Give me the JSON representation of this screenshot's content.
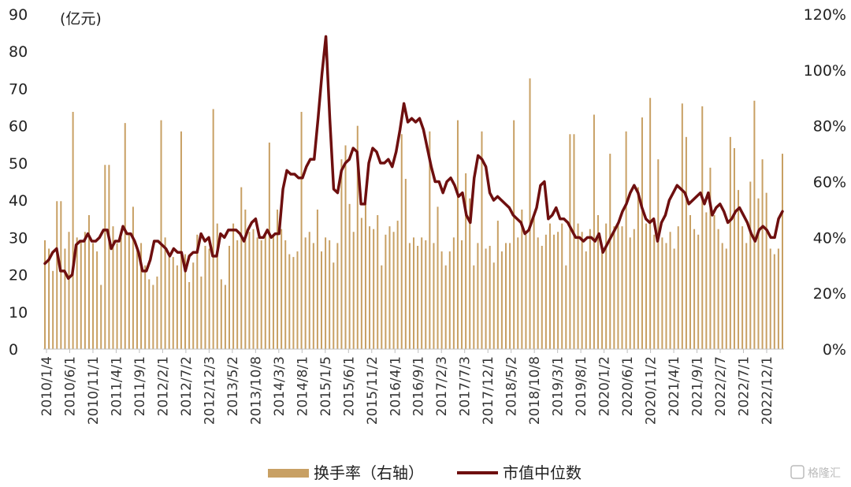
{
  "chart_data": {
    "type": "bar",
    "unit_left": "(亿元)",
    "left_axis": {
      "ylim": [
        0,
        90
      ],
      "ticks": [
        "0",
        "10",
        "20",
        "30",
        "40",
        "50",
        "60",
        "70",
        "80",
        "90"
      ]
    },
    "right_axis": {
      "ylim": [
        0,
        1.2
      ],
      "ticks": [
        "0%",
        "20%",
        "40%",
        "60%",
        "80%",
        "100%",
        "120%"
      ]
    },
    "x_tick_labels": [
      "2010/1/4",
      "2010/6/1",
      "2010/11/1",
      "2011/4/1",
      "2011/9/1",
      "2012/2/1",
      "2012/7/2",
      "2012/12/3",
      "2013/5/2",
      "2013/10/8",
      "2014/3/3",
      "2014/8/1",
      "2015/1/5",
      "2015/6/1",
      "2015/11/2",
      "2016/4/1",
      "2016/9/1",
      "2017/2/3",
      "2017/7/3",
      "2017/12/1",
      "2018/5/2",
      "2018/10/8",
      "2019/3/1",
      "2019/8/1",
      "2020/1/2",
      "2020/6/1",
      "2020/11/2",
      "2021/4/1",
      "2021/9/1",
      "2022/2/7",
      "2022/7/1",
      "2022/12/1"
    ],
    "series": [
      {
        "name": "换手率（右轴）",
        "axis": "right",
        "type": "bar",
        "color": "#c8a064",
        "values": [
          0.39,
          0.36,
          0.28,
          0.53,
          0.53,
          0.36,
          0.42,
          0.85,
          0.4,
          0.39,
          0.42,
          0.48,
          0.38,
          0.35,
          0.23,
          0.66,
          0.66,
          0.44,
          0.38,
          0.4,
          0.81,
          0.41,
          0.51,
          0.36,
          0.38,
          0.3,
          0.25,
          0.23,
          0.26,
          0.82,
          0.4,
          0.33,
          0.33,
          0.3,
          0.78,
          0.34,
          0.24,
          0.31,
          0.41,
          0.26,
          0.37,
          0.36,
          0.86,
          0.45,
          0.25,
          0.23,
          0.37,
          0.45,
          0.39,
          0.58,
          0.5,
          0.42,
          0.43,
          0.4,
          0.39,
          0.41,
          0.74,
          0.41,
          0.5,
          0.43,
          0.39,
          0.34,
          0.33,
          0.35,
          0.85,
          0.4,
          0.42,
          0.38,
          0.5,
          0.35,
          0.4,
          0.39,
          0.31,
          0.38,
          0.68,
          0.73,
          0.52,
          0.42,
          0.8,
          0.47,
          0.53,
          0.44,
          0.43,
          0.48,
          0.3,
          0.41,
          0.44,
          0.42,
          0.46,
          0.77,
          0.61,
          0.38,
          0.4,
          0.37,
          0.4,
          0.39,
          0.78,
          0.38,
          0.51,
          0.35,
          0.3,
          0.35,
          0.4,
          0.82,
          0.39,
          0.63,
          0.54,
          0.3,
          0.38,
          0.78,
          0.36,
          0.37,
          0.31,
          0.46,
          0.35,
          0.38,
          0.38,
          0.82,
          0.4,
          0.5,
          0.41,
          0.97,
          0.48,
          0.4,
          0.37,
          0.41,
          0.45,
          0.41,
          0.42,
          0.45,
          0.3,
          0.77,
          0.77,
          0.45,
          0.42,
          0.35,
          0.43,
          0.84,
          0.48,
          0.37,
          0.45,
          0.7,
          0.44,
          0.45,
          0.44,
          0.78,
          0.4,
          0.43,
          0.58,
          0.83,
          0.45,
          0.9,
          0.41,
          0.68,
          0.4,
          0.38,
          0.42,
          0.36,
          0.44,
          0.88,
          0.76,
          0.48,
          0.43,
          0.41,
          0.87,
          0.49,
          0.65,
          0.48,
          0.43,
          0.38,
          0.36,
          0.76,
          0.72,
          0.57,
          0.44,
          0.38,
          0.6,
          0.89,
          0.54,
          0.68,
          0.56,
          0.36,
          0.34,
          0.36,
          0.7
        ]
      },
      {
        "name": "市值中位数",
        "axis": "left",
        "type": "line",
        "color": "#6e0f0f",
        "values": [
          23,
          24,
          26,
          27,
          21,
          21,
          19,
          20,
          28,
          29,
          29,
          31,
          29,
          29,
          30,
          32,
          32,
          27,
          29,
          29,
          33,
          31,
          31,
          29,
          26,
          21,
          21,
          24,
          29,
          29,
          28,
          27,
          25,
          27,
          26,
          26,
          21,
          25,
          26,
          26,
          31,
          29,
          30,
          25,
          25,
          31,
          30,
          32,
          32,
          32,
          31,
          29,
          32,
          34,
          35,
          30,
          30,
          32,
          30,
          31,
          31,
          43,
          48,
          47,
          47,
          46,
          46,
          49,
          51,
          51,
          62,
          74,
          84,
          62,
          43,
          42,
          48,
          50,
          51,
          54,
          53,
          39,
          39,
          50,
          54,
          53,
          50,
          50,
          51,
          49,
          53,
          59,
          66,
          61,
          62,
          61,
          62,
          59,
          54,
          49,
          45,
          45,
          42,
          45,
          46,
          44,
          41,
          42,
          36,
          34,
          46,
          52,
          51,
          49,
          42,
          40,
          41,
          40,
          39,
          38,
          36,
          35,
          34,
          31,
          32,
          35,
          38,
          44,
          45,
          35,
          36,
          38,
          35,
          35,
          34,
          32,
          30,
          30,
          29,
          30,
          30,
          29,
          31,
          26,
          28,
          30,
          32,
          34,
          37,
          39,
          42,
          44,
          42,
          38,
          35,
          34,
          35,
          29,
          34,
          36,
          40,
          42,
          44,
          43,
          42,
          39,
          40,
          41,
          42,
          39,
          42,
          36,
          38,
          39,
          37,
          34,
          35,
          37,
          38,
          36,
          34,
          31,
          29,
          32,
          33,
          32,
          30,
          30,
          35,
          37
        ]
      }
    ]
  },
  "legend": {
    "bar_label": "换手率（右轴）",
    "line_label": "市值中位数"
  },
  "watermark": "格隆汇"
}
